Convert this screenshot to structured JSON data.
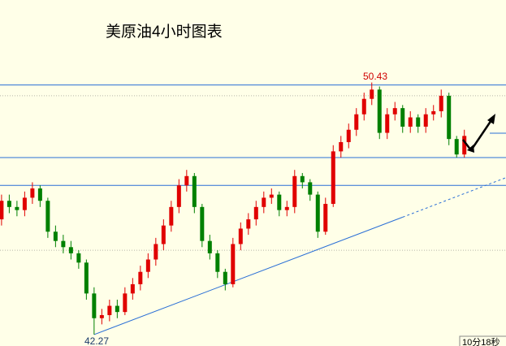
{
  "chart_data": {
    "type": "candlestick",
    "title": "美原油4小时图表",
    "high_label": "50.43",
    "low_label": "42.27",
    "countdown": "10分18秒",
    "up_color": "#e00000",
    "down_color": "#008000",
    "line_color": "#2a6fd6",
    "xlim": [
      -0.2,
      65.4
    ],
    "ylim": [
      41.9,
      53.1
    ],
    "levels": [
      50.35,
      48.0,
      47.1
    ],
    "dotted_levels": [
      50.0,
      45.0
    ],
    "trend_solid": [
      [
        12,
        42.27
      ],
      [
        52,
        46.07
      ]
    ],
    "trend_dashed": [
      [
        52,
        46.07
      ],
      [
        65.4,
        47.35
      ]
    ],
    "open": [
      46.0,
      46.6,
      46.4,
      46.3,
      46.7,
      47.0,
      46.6,
      45.6,
      45.3,
      45.1,
      44.9,
      44.6,
      43.6,
      42.8,
      42.9,
      43.2,
      43.0,
      43.6,
      43.9,
      44.3,
      44.7,
      45.2,
      45.8,
      46.4,
      47.1,
      47.4,
      46.4,
      45.3,
      44.9,
      44.3,
      43.9,
      45.2,
      45.7,
      46.0,
      46.4,
      46.7,
      46.8,
      46.3,
      46.4,
      47.4,
      47.2,
      46.8,
      45.6,
      46.5,
      48.2,
      48.5,
      48.9,
      49.4,
      49.9,
      50.2,
      48.8,
      49.4,
      49.6,
      49.0,
      49.3,
      49.0,
      49.4,
      49.5,
      50.0,
      48.6,
      48.1
    ],
    "close": [
      46.6,
      46.4,
      46.3,
      46.7,
      47.0,
      46.6,
      45.6,
      45.3,
      45.1,
      44.9,
      44.6,
      43.6,
      42.8,
      42.9,
      43.2,
      43.0,
      43.6,
      43.9,
      44.3,
      44.7,
      45.2,
      45.8,
      46.4,
      47.1,
      47.4,
      46.4,
      45.3,
      44.9,
      44.3,
      43.9,
      45.2,
      45.7,
      46.0,
      46.4,
      46.7,
      46.8,
      46.3,
      46.4,
      47.4,
      47.2,
      46.8,
      45.6,
      46.5,
      48.2,
      48.5,
      48.9,
      49.4,
      49.9,
      50.2,
      48.8,
      49.4,
      49.6,
      49.0,
      49.3,
      49.0,
      49.4,
      49.5,
      50.0,
      48.6,
      48.1,
      48.7
    ],
    "high": [
      46.8,
      46.8,
      46.6,
      46.9,
      47.2,
      47.1,
      46.7,
      45.8,
      45.5,
      45.3,
      45.0,
      44.7,
      43.8,
      43.1,
      43.4,
      43.4,
      43.8,
      44.1,
      44.5,
      44.9,
      45.4,
      46.0,
      46.6,
      47.3,
      47.6,
      47.5,
      46.5,
      45.5,
      45.0,
      44.4,
      45.4,
      45.9,
      46.2,
      46.6,
      46.9,
      47.0,
      46.9,
      46.6,
      47.6,
      47.5,
      47.3,
      46.9,
      46.7,
      48.4,
      48.7,
      49.1,
      49.6,
      50.1,
      50.43,
      50.3,
      49.6,
      49.8,
      49.7,
      49.5,
      49.4,
      49.6,
      49.7,
      50.2,
      50.1,
      48.7,
      48.9
    ],
    "low": [
      45.8,
      46.2,
      46.1,
      46.1,
      46.5,
      46.4,
      45.4,
      45.1,
      44.9,
      44.7,
      44.4,
      43.4,
      42.27,
      42.6,
      42.7,
      42.8,
      42.9,
      43.4,
      43.7,
      44.1,
      44.5,
      45.0,
      45.6,
      46.2,
      46.9,
      46.2,
      45.1,
      44.7,
      44.1,
      43.7,
      43.8,
      45.0,
      45.5,
      45.8,
      46.2,
      46.5,
      46.1,
      46.1,
      46.2,
      47.0,
      46.6,
      45.4,
      45.5,
      46.4,
      48.0,
      48.3,
      48.7,
      49.2,
      49.7,
      48.6,
      48.6,
      49.2,
      48.8,
      48.8,
      48.8,
      48.8,
      49.2,
      49.3,
      48.4,
      48.0,
      48.0
    ]
  }
}
